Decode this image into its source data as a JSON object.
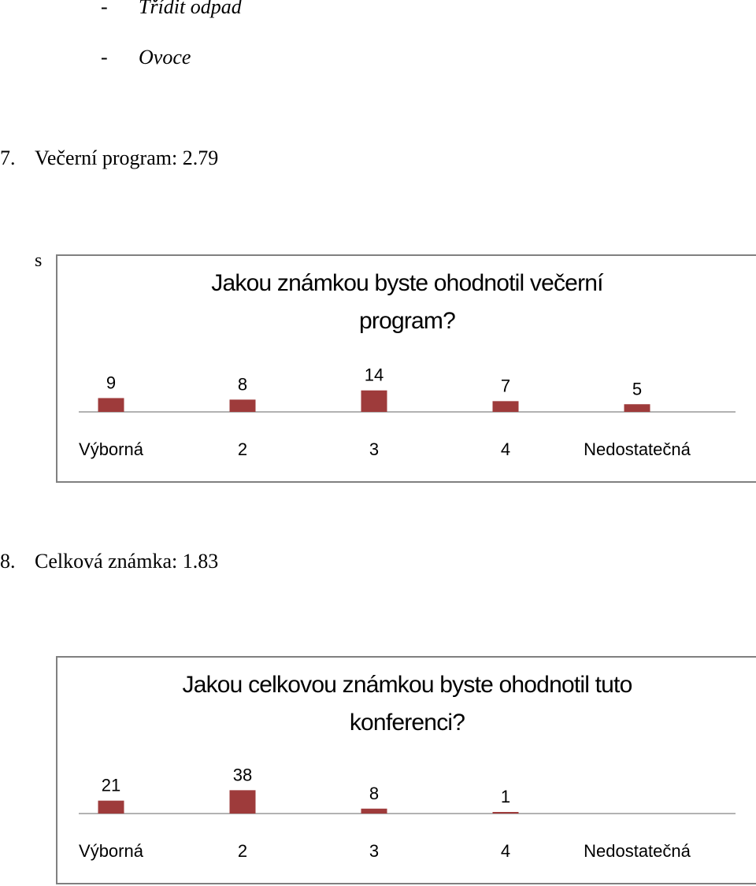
{
  "bullets": [
    {
      "dash": "-",
      "text": "Třídit odpad"
    },
    {
      "dash": "-",
      "text": "Ovoce"
    }
  ],
  "section7": {
    "number": "7.",
    "text": "Večerní program: 2.79"
  },
  "stray_char": "s",
  "section8": {
    "number": "8.",
    "text": "Celková známka: 1.83"
  },
  "chart_data": [
    {
      "type": "bar",
      "title": "Jakou známkou byste ohodnotil večerní program?",
      "title_lines": [
        "Jakou známkou byste ohodnotil večerní",
        "program?"
      ],
      "categories": [
        "Výborná",
        "2",
        "3",
        "4",
        "Nedostatečná"
      ],
      "values": [
        9,
        8,
        14,
        7,
        5
      ],
      "xlabel": "",
      "ylabel": "",
      "ylim": [
        0,
        40
      ],
      "grid": false,
      "bar_color": "#9e3b3b"
    },
    {
      "type": "bar",
      "title": "Jakou celkovou známkou byste ohodnotil tuto konferenci?",
      "title_lines": [
        "Jakou celkovou známkou  byste ohodnotil tuto",
        "konferenci?"
      ],
      "categories": [
        "Výborná",
        "2",
        "3",
        "4",
        "Nedostatečná"
      ],
      "values": [
        21,
        38,
        8,
        1,
        null
      ],
      "xlabel": "",
      "ylabel": "",
      "ylim": [
        0,
        100
      ],
      "grid": false,
      "bar_color": "#9e3b3b"
    }
  ]
}
